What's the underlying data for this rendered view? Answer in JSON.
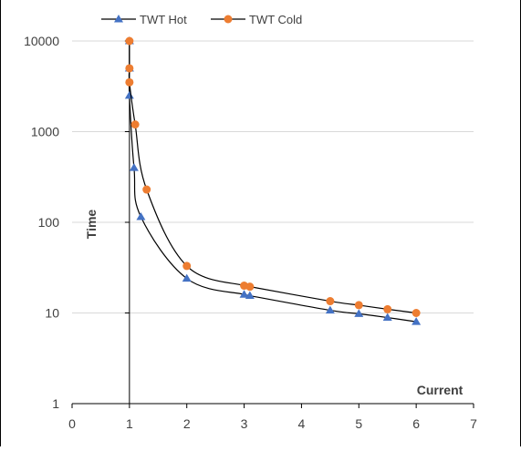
{
  "chart_data": {
    "type": "scatter",
    "xlabel": "Current",
    "ylabel": "Time",
    "xlim": [
      0,
      7
    ],
    "ylim": [
      1,
      10000
    ],
    "y_scale": "log",
    "x_ticks": [
      0,
      1,
      2,
      3,
      4,
      5,
      6,
      7
    ],
    "y_ticks": [
      1,
      10,
      100,
      1000,
      10000
    ],
    "grid": "horizontal",
    "legend": "top",
    "series": [
      {
        "name": "TWT Hot",
        "marker": "triangle",
        "marker_color": "#4472C4",
        "line_color": "#000000",
        "points": [
          {
            "x": 1.0,
            "y": 10000
          },
          {
            "x": 1.0,
            "y": 5000
          },
          {
            "x": 1.0,
            "y": 2500
          },
          {
            "x": 1.08,
            "y": 400
          },
          {
            "x": 1.2,
            "y": 115
          },
          {
            "x": 2.0,
            "y": 24
          },
          {
            "x": 3.0,
            "y": 16
          },
          {
            "x": 3.1,
            "y": 15.5
          },
          {
            "x": 4.5,
            "y": 10.7
          },
          {
            "x": 5.0,
            "y": 9.8
          },
          {
            "x": 5.5,
            "y": 8.9
          },
          {
            "x": 6.0,
            "y": 8
          }
        ]
      },
      {
        "name": "TWT Cold",
        "marker": "circle",
        "marker_color": "#ED7D31",
        "line_color": "#000000",
        "points": [
          {
            "x": 1.0,
            "y": 10000
          },
          {
            "x": 1.0,
            "y": 5000
          },
          {
            "x": 1.0,
            "y": 3500
          },
          {
            "x": 1.1,
            "y": 1200
          },
          {
            "x": 1.3,
            "y": 230
          },
          {
            "x": 2.0,
            "y": 33
          },
          {
            "x": 3.0,
            "y": 20
          },
          {
            "x": 3.1,
            "y": 19.5
          },
          {
            "x": 4.5,
            "y": 13.5
          },
          {
            "x": 5.0,
            "y": 12.2
          },
          {
            "x": 5.5,
            "y": 11
          },
          {
            "x": 6.0,
            "y": 10
          }
        ]
      }
    ]
  }
}
